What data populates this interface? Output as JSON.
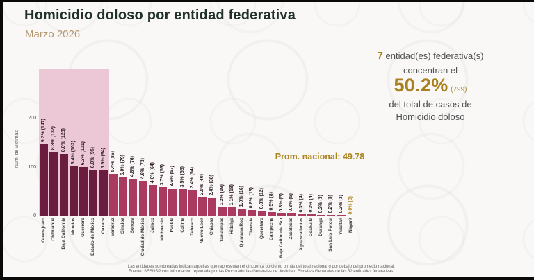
{
  "header": {
    "title": "Homicidio doloso por entidad federativa",
    "subtitle": "Marzo 2026"
  },
  "summary": {
    "count": "7",
    "count_suffix": "entidad(es) federativa(s)",
    "line_concentran": "concentran el",
    "percent": "50.2%",
    "total": "(799)",
    "line_total_1": "del total de casos de",
    "line_total_2": "Homicidio doloso"
  },
  "annotation": {
    "national_average": "Prom. nacional: 49.78"
  },
  "chart_data": {
    "type": "bar",
    "title": "Homicidio doloso por entidad federativa",
    "xlabel": "",
    "ylabel": "Núm. de víctimas",
    "yticks": [
      0,
      100,
      200
    ],
    "ylim": [
      0,
      300
    ],
    "grid": false,
    "legend": false,
    "categories": [
      "Guanajuato",
      "Chihuahua",
      "Baja California",
      "Morelos",
      "Guerrero",
      "Estado de México",
      "Oaxaca",
      "Veracruz",
      "Sinaloa",
      "Sonora",
      "Ciudad de México",
      "Jalisco",
      "Michoacán",
      "Puebla",
      "Colima",
      "Tabasco",
      "Nuevo León",
      "Chiapas",
      "Tamaulipas",
      "Hidalgo",
      "Quintana Roo",
      "Tlaxcala",
      "Querétaro",
      "Campeche",
      "Baja California Sur",
      "Zacatecas",
      "Aguascalientes",
      "Coahuila",
      "Durango",
      "San Luis Potosí",
      "Yucatán",
      "Nayarit"
    ],
    "values": [
      147,
      132,
      128,
      102,
      101,
      95,
      94,
      86,
      79,
      76,
      73,
      64,
      59,
      57,
      55,
      54,
      40,
      38,
      19,
      18,
      16,
      13,
      12,
      8,
      5,
      5,
      4,
      4,
      3,
      3,
      3,
      0
    ],
    "labels": [
      "9.2% (147)",
      "8.3% (132)",
      "8.0% (128)",
      "6.4% (102)",
      "6.3% (101)",
      "6.0% (95)",
      "5.9% (94)",
      "5.4% (86)",
      "5.0% (79)",
      "4.8% (76)",
      "4.6% (73)",
      "4.0% (64)",
      "3.7% (59)",
      "3.6% (57)",
      "3.5% (55)",
      "3.4% (54)",
      "2.5% (40)",
      "2.4% (38)",
      "1.2% (19)",
      "1.1% (18)",
      "1.0% (16)",
      "0.8% (13)",
      "0.8% (12)",
      "0.5% (8)",
      "0.3% (5)",
      "0.3% (5)",
      "0.3% (4)",
      "0.3% (4)",
      "0.2% (3)",
      "0.2% (3)",
      "0.2% (3)",
      "0.0% (0)"
    ],
    "highlight_count": 7,
    "bar_color_highlighted": "#6b1d3f",
    "bar_color_default": "#aa3a60",
    "highlight_band_color": "#ecc8d6",
    "zero_label_color": "#b1882c",
    "national_average": 49.78
  },
  "colors": {
    "title": "#20302a",
    "accent_gold": "#a9801f",
    "subtitle_tan": "#b39670",
    "background": "#f9f8f6"
  },
  "footer": {
    "note": "Las entidades sombreadas indican aquellas que representan el cincuenta porciento o más del total nacional o por debajo del promedio nacional.",
    "source": "Fuente: SESNSP con información reportada por las Procuradurías Generales de Justicia o Fiscalías Generales de las 32 entidades federativas."
  }
}
